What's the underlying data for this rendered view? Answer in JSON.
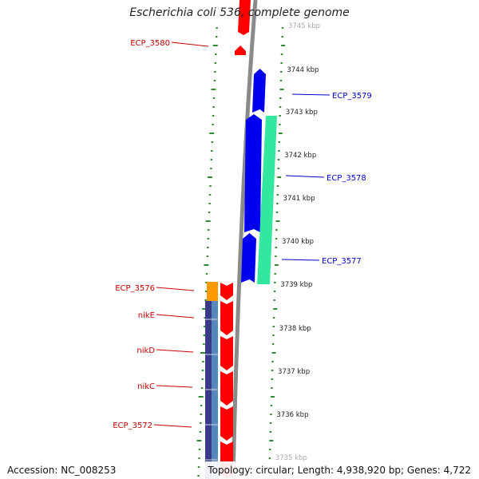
{
  "map": {
    "title": "Escherichia coli 536, complete genome",
    "accession_label": "Accession: NC_008253",
    "stats_label": "Topology: circular; Length: 4,938,920 bp; Genes: 4,722"
  },
  "kbp_labels": [
    "3745 kbp",
    "3744 kbp",
    "3743 kbp",
    "3742 kbp",
    "3741 kbp",
    "3740 kbp",
    "3739 kbp",
    "3738 kbp",
    "3737 kbp",
    "3736 kbp",
    "3735 kbp"
  ],
  "genes_forward": [
    "ECP_3579",
    "ECP_3578",
    "ECP_3577"
  ],
  "genes_reverse": [
    "ECP_3580",
    "ECP_3576",
    "nikE",
    "nikD",
    "nikC",
    "ECP_3572"
  ],
  "colors": {
    "forward_strand": "#0000ee",
    "reverse_strand": "#ff0000",
    "forward_label": "#0000cc",
    "reverse_label": "#cc0000",
    "backbone": "#8a8a8a",
    "tick_dots": "#2e8b2e",
    "teal_feature": "#33e89e",
    "orange_feature": "#ff9900",
    "navy_feature": "#3a3a88",
    "steel_feature": "#5588bb"
  }
}
